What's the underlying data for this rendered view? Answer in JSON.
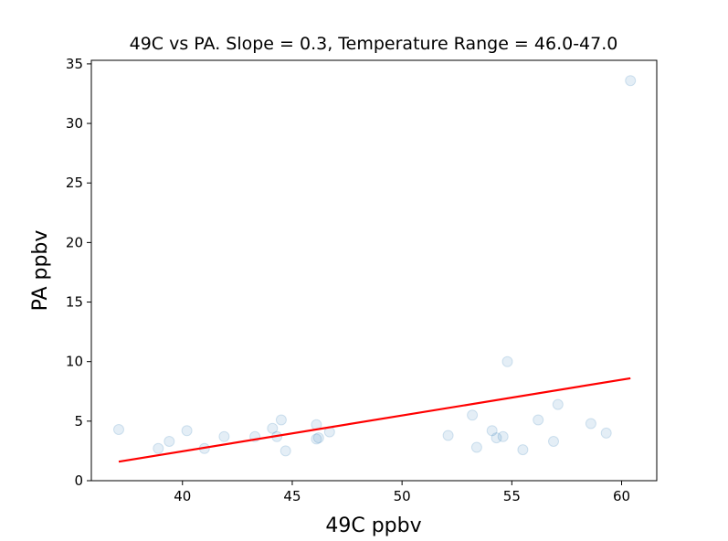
{
  "chart_data": {
    "type": "scatter",
    "title": "49C vs PA.   Slope = 0.3,   Temperature Range = 46.0-47.0",
    "xlabel": "49C ppbv",
    "ylabel": "PA ppbv",
    "xlim": [
      35.85,
      61.6
    ],
    "ylim": [
      0,
      35.3
    ],
    "xticks": [
      40,
      45,
      50,
      55,
      60
    ],
    "yticks": [
      0,
      5,
      10,
      15,
      20,
      25,
      30,
      35
    ],
    "grid": false,
    "colors": {
      "points": "#1f77b4",
      "fit": "#ff0000"
    },
    "series": [
      {
        "kind": "points",
        "x": [
          37.1,
          38.9,
          39.4,
          40.2,
          41.0,
          41.9,
          43.3,
          44.1,
          44.3,
          44.5,
          44.7,
          46.1,
          46.1,
          46.2,
          46.7,
          52.1,
          53.2,
          53.4,
          54.1,
          54.3,
          54.6,
          54.8,
          55.5,
          56.2,
          56.9,
          57.1,
          58.6,
          59.3,
          60.4
        ],
        "y": [
          4.3,
          2.7,
          3.3,
          4.2,
          2.7,
          3.7,
          3.7,
          4.4,
          3.7,
          5.1,
          2.5,
          4.7,
          3.5,
          3.6,
          4.1,
          3.8,
          5.5,
          2.8,
          4.2,
          3.6,
          3.7,
          10.0,
          2.6,
          5.1,
          3.3,
          6.4,
          4.8,
          4.0,
          33.6
        ]
      },
      {
        "kind": "fit-line",
        "x": [
          37.1,
          60.4
        ],
        "y": [
          1.6,
          8.6
        ]
      }
    ]
  }
}
